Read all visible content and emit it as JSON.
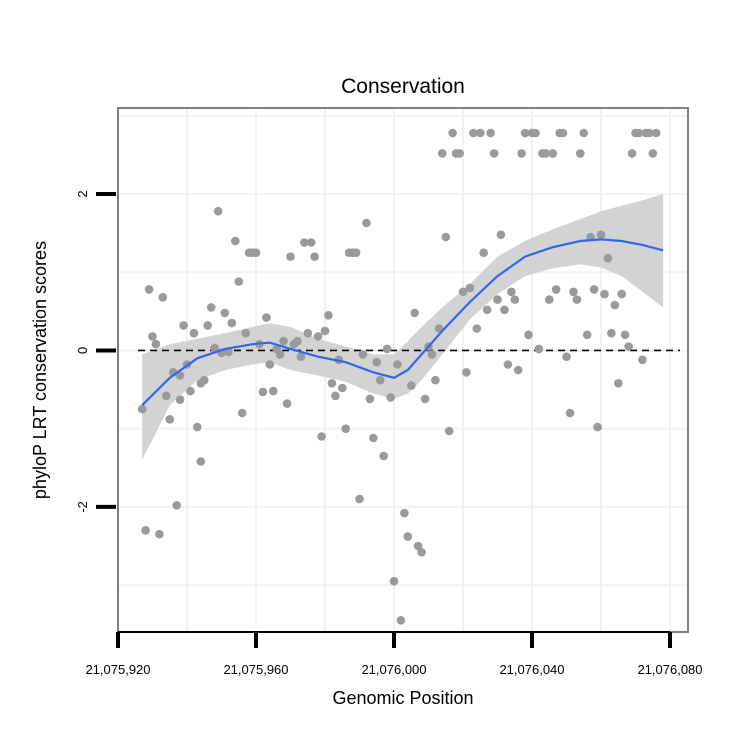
{
  "chart_data": {
    "type": "scatter",
    "title": "Conservation",
    "xlabel": "Genomic Position",
    "ylabel": "phyloP LRT conservation scores",
    "xlim": [
      21075920,
      21076080
    ],
    "ylim": [
      -3.6,
      3.1
    ],
    "x_ticks": [
      21075920,
      21075960,
      21076000,
      21076040,
      21076080
    ],
    "x_tick_labels": [
      "21,075,920",
      "21,075,960",
      "21,076,000",
      "21,076,040",
      "21,076,080"
    ],
    "y_ticks": [
      -2,
      0,
      2
    ],
    "y_tick_labels": [
      "-2",
      "0",
      "2"
    ],
    "reference_line": {
      "y": 0,
      "style": "dashed"
    },
    "colors": {
      "points": "#9a9a9a",
      "smooth": "#3366ee",
      "band": "#d3d3d3",
      "panel": "#ffffff",
      "grid": "#f2f2f2",
      "border": "#808080"
    },
    "points": [
      [
        21075927,
        -0.75
      ],
      [
        21075928,
        -2.3
      ],
      [
        21075929,
        0.78
      ],
      [
        21075930,
        0.18
      ],
      [
        21075931,
        0.08
      ],
      [
        21075932,
        -2.35
      ],
      [
        21075933,
        0.68
      ],
      [
        21075934,
        -0.58
      ],
      [
        21075935,
        -0.88
      ],
      [
        21075936,
        -0.28
      ],
      [
        21075937,
        -1.98
      ],
      [
        21075938,
        -0.32
      ],
      [
        21075938,
        -0.63
      ],
      [
        21075939,
        0.32
      ],
      [
        21075940,
        -0.18
      ],
      [
        21075941,
        -0.52
      ],
      [
        21075942,
        0.22
      ],
      [
        21075943,
        -0.98
      ],
      [
        21075944,
        -0.42
      ],
      [
        21075944,
        -1.42
      ],
      [
        21075945,
        -0.38
      ],
      [
        21075946,
        0.32
      ],
      [
        21075947,
        0.55
      ],
      [
        21075948,
        0.03
      ],
      [
        21075949,
        1.78
      ],
      [
        21075950,
        -0.03
      ],
      [
        21075951,
        0.48
      ],
      [
        21075952,
        -0.02
      ],
      [
        21075953,
        0.35
      ],
      [
        21075954,
        1.4
      ],
      [
        21075955,
        0.88
      ],
      [
        21075956,
        -0.8
      ],
      [
        21075957,
        0.22
      ],
      [
        21075958,
        1.25
      ],
      [
        21075959,
        1.25
      ],
      [
        21075960,
        1.25
      ],
      [
        21075961,
        0.08
      ],
      [
        21075962,
        -0.53
      ],
      [
        21075963,
        0.42
      ],
      [
        21075964,
        -0.18
      ],
      [
        21075965,
        -0.52
      ],
      [
        21075966,
        0.02
      ],
      [
        21075967,
        -0.05
      ],
      [
        21075968,
        0.12
      ],
      [
        21075969,
        -0.68
      ],
      [
        21075970,
        1.2
      ],
      [
        21075971,
        0.08
      ],
      [
        21075972,
        0.12
      ],
      [
        21075973,
        -0.08
      ],
      [
        21075974,
        1.38
      ],
      [
        21075975,
        0.22
      ],
      [
        21075976,
        1.38
      ],
      [
        21075977,
        1.2
      ],
      [
        21075978,
        0.18
      ],
      [
        21075979,
        -1.1
      ],
      [
        21075980,
        0.25
      ],
      [
        21075981,
        0.45
      ],
      [
        21075982,
        -0.42
      ],
      [
        21075983,
        -0.58
      ],
      [
        21075984,
        -0.12
      ],
      [
        21075985,
        -0.48
      ],
      [
        21075986,
        -1.0
      ],
      [
        21075987,
        1.25
      ],
      [
        21075988,
        1.25
      ],
      [
        21075989,
        1.25
      ],
      [
        21075990,
        -1.9
      ],
      [
        21075991,
        -0.05
      ],
      [
        21075992,
        1.63
      ],
      [
        21075993,
        -0.62
      ],
      [
        21075994,
        -1.12
      ],
      [
        21075995,
        -0.15
      ],
      [
        21075996,
        -0.38
      ],
      [
        21075997,
        -1.35
      ],
      [
        21075998,
        0.02
      ],
      [
        21075999,
        -0.6
      ],
      [
        21076000,
        -2.95
      ],
      [
        21076001,
        -0.18
      ],
      [
        21076002,
        -3.45
      ],
      [
        21076003,
        -2.08
      ],
      [
        21076004,
        -2.38
      ],
      [
        21076005,
        -0.45
      ],
      [
        21076006,
        0.48
      ],
      [
        21076007,
        -2.5
      ],
      [
        21076008,
        -2.58
      ],
      [
        21076009,
        -0.62
      ],
      [
        21076010,
        0.05
      ],
      [
        21076011,
        -0.05
      ],
      [
        21076012,
        -0.38
      ],
      [
        21076013,
        0.28
      ],
      [
        21076014,
        2.52
      ],
      [
        21076015,
        1.45
      ],
      [
        21076016,
        -1.03
      ],
      [
        21076017,
        2.78
      ],
      [
        21076018,
        2.52
      ],
      [
        21076019,
        2.52
      ],
      [
        21076020,
        0.75
      ],
      [
        21076021,
        -0.28
      ],
      [
        21076022,
        0.8
      ],
      [
        21076023,
        2.78
      ],
      [
        21076024,
        0.28
      ],
      [
        21076025,
        2.78
      ],
      [
        21076026,
        1.25
      ],
      [
        21076027,
        0.52
      ],
      [
        21076028,
        2.78
      ],
      [
        21076029,
        2.52
      ],
      [
        21076030,
        0.65
      ],
      [
        21076031,
        1.48
      ],
      [
        21076032,
        0.52
      ],
      [
        21076033,
        -0.18
      ],
      [
        21076034,
        0.75
      ],
      [
        21076035,
        0.65
      ],
      [
        21076036,
        -0.25
      ],
      [
        21076037,
        2.52
      ],
      [
        21076038,
        2.78
      ],
      [
        21076039,
        0.2
      ],
      [
        21076040,
        2.78
      ],
      [
        21076041,
        2.78
      ],
      [
        21076042,
        0.02
      ],
      [
        21076043,
        2.52
      ],
      [
        21076044,
        2.52
      ],
      [
        21076045,
        0.65
      ],
      [
        21076046,
        2.52
      ],
      [
        21076047,
        0.78
      ],
      [
        21076048,
        2.78
      ],
      [
        21076049,
        2.78
      ],
      [
        21076050,
        -0.08
      ],
      [
        21076051,
        -0.8
      ],
      [
        21076052,
        0.75
      ],
      [
        21076053,
        0.65
      ],
      [
        21076054,
        2.52
      ],
      [
        21076055,
        2.78
      ],
      [
        21076056,
        0.2
      ],
      [
        21076057,
        1.45
      ],
      [
        21076058,
        0.78
      ],
      [
        21076059,
        -0.98
      ],
      [
        21076060,
        1.48
      ],
      [
        21076061,
        0.72
      ],
      [
        21076062,
        1.18
      ],
      [
        21076063,
        0.22
      ],
      [
        21076064,
        0.58
      ],
      [
        21076065,
        -0.42
      ],
      [
        21076066,
        0.72
      ],
      [
        21076067,
        0.2
      ],
      [
        21076068,
        0.05
      ],
      [
        21076069,
        2.52
      ],
      [
        21076070,
        2.78
      ],
      [
        21076071,
        2.78
      ],
      [
        21076072,
        -0.12
      ],
      [
        21076073,
        2.78
      ],
      [
        21076074,
        2.78
      ],
      [
        21076075,
        2.52
      ],
      [
        21076076,
        2.78
      ]
    ],
    "smooth_line": [
      [
        21075927,
        -0.7
      ],
      [
        21075935,
        -0.35
      ],
      [
        21075943,
        -0.1
      ],
      [
        21075951,
        0.02
      ],
      [
        21075959,
        0.08
      ],
      [
        21075964,
        0.1
      ],
      [
        21075970,
        0.02
      ],
      [
        21075978,
        -0.08
      ],
      [
        21075986,
        -0.15
      ],
      [
        21075994,
        -0.28
      ],
      [
        21076000,
        -0.35
      ],
      [
        21076004,
        -0.25
      ],
      [
        21076008,
        -0.05
      ],
      [
        21076014,
        0.25
      ],
      [
        21076022,
        0.62
      ],
      [
        21076030,
        0.95
      ],
      [
        21076038,
        1.2
      ],
      [
        21076046,
        1.32
      ],
      [
        21076054,
        1.4
      ],
      [
        21076060,
        1.42
      ],
      [
        21076066,
        1.4
      ],
      [
        21076072,
        1.35
      ],
      [
        21076078,
        1.28
      ]
    ],
    "confidence_band_upper": [
      [
        21075927,
        -0.05
      ],
      [
        21075935,
        0.08
      ],
      [
        21075943,
        0.15
      ],
      [
        21075951,
        0.22
      ],
      [
        21075959,
        0.3
      ],
      [
        21075964,
        0.35
      ],
      [
        21075970,
        0.3
      ],
      [
        21075978,
        0.15
      ],
      [
        21075986,
        0.05
      ],
      [
        21075994,
        -0.05
      ],
      [
        21076000,
        -0.05
      ],
      [
        21076004,
        0.12
      ],
      [
        21076008,
        0.3
      ],
      [
        21076014,
        0.55
      ],
      [
        21076022,
        0.85
      ],
      [
        21076030,
        1.2
      ],
      [
        21076038,
        1.4
      ],
      [
        21076046,
        1.55
      ],
      [
        21076054,
        1.68
      ],
      [
        21076060,
        1.78
      ],
      [
        21076066,
        1.85
      ],
      [
        21076072,
        1.92
      ],
      [
        21076078,
        2.0
      ]
    ],
    "confidence_band_lower": [
      [
        21075927,
        -1.4
      ],
      [
        21075935,
        -0.7
      ],
      [
        21075943,
        -0.38
      ],
      [
        21075951,
        -0.25
      ],
      [
        21075959,
        -0.18
      ],
      [
        21075964,
        -0.15
      ],
      [
        21075970,
        -0.25
      ],
      [
        21075978,
        -0.32
      ],
      [
        21075986,
        -0.4
      ],
      [
        21075994,
        -0.55
      ],
      [
        21076000,
        -0.62
      ],
      [
        21076004,
        -0.55
      ],
      [
        21076008,
        -0.38
      ],
      [
        21076014,
        -0.05
      ],
      [
        21076022,
        0.4
      ],
      [
        21076030,
        0.72
      ],
      [
        21076038,
        0.95
      ],
      [
        21076046,
        1.05
      ],
      [
        21076054,
        1.1
      ],
      [
        21076060,
        1.06
      ],
      [
        21076066,
        0.95
      ],
      [
        21076072,
        0.75
      ],
      [
        21076078,
        0.55
      ]
    ]
  }
}
